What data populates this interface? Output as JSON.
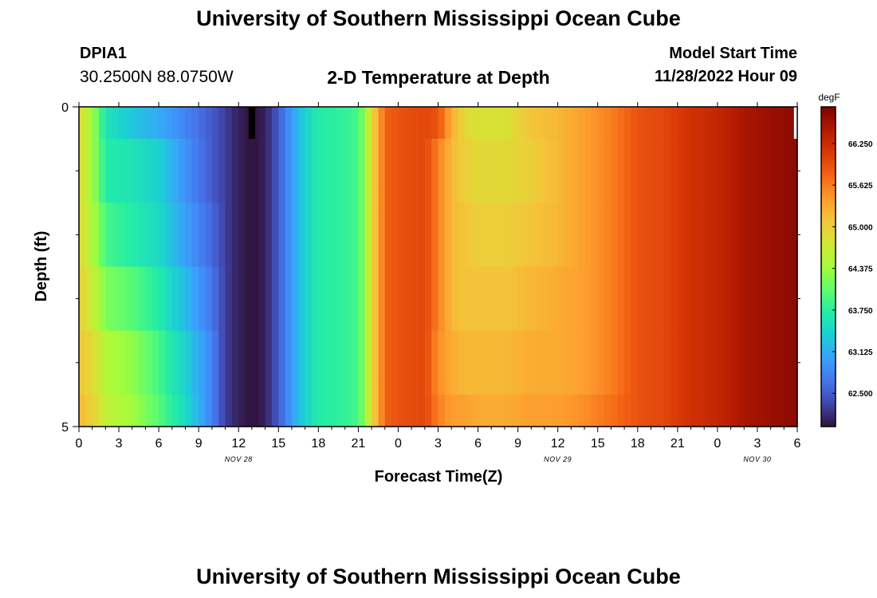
{
  "page": {
    "title": "University of Southern Mississippi Ocean Cube",
    "footer_title": "University of Southern Mississippi Ocean Cube",
    "station_id": "DPIA1",
    "station_coords": "30.2500N  88.0750W",
    "plot_title": "2-D Temperature at Depth",
    "model_start_label": "Model Start Time",
    "model_start_value": "11/28/2022 Hour 09"
  },
  "colors": {
    "background": "#ffffff",
    "axis": "#000000",
    "missing": "#000000"
  },
  "chart_data": {
    "type": "heatmap",
    "title": "2-D Temperature at Depth",
    "xlabel": "Forecast Time(Z)",
    "ylabel": "Depth (ft)",
    "x_range_hours": [
      0,
      54
    ],
    "y_range": [
      0,
      5
    ],
    "x_tick_labels": [
      "0",
      "3",
      "6",
      "9",
      "12",
      "15",
      "18",
      "21",
      "0",
      "3",
      "6",
      "9",
      "12",
      "15",
      "18",
      "21",
      "0",
      "3",
      "6"
    ],
    "x_minor_step_hours": 1,
    "y_tick_labels": [
      "0",
      "5"
    ],
    "y_minor_ticks": [
      1,
      2,
      3,
      4
    ],
    "date_labels": [
      {
        "text": "NOV 28",
        "hour": 12
      },
      {
        "text": "NOV 29",
        "hour": 36
      },
      {
        "text": "NOV 30",
        "hour": 51
      }
    ],
    "colorbar": {
      "unit": "degF",
      "range": [
        62.0,
        66.8
      ],
      "tick_values": [
        62.5,
        63.125,
        63.75,
        64.375,
        65.0,
        65.625,
        66.25
      ],
      "tick_labels": [
        "62.500",
        "63.125",
        "63.750",
        "64.375",
        "65.000",
        "65.625",
        "66.250"
      ],
      "stops": [
        "#30123b",
        "#4145ab",
        "#4675ed",
        "#39a2fc",
        "#1bcfd4",
        "#24eca6",
        "#61fc6c",
        "#a4fc3b",
        "#d1e834",
        "#f3c63a",
        "#fe9b2d",
        "#f36315",
        "#d93806",
        "#b11901",
        "#7a0402"
      ]
    },
    "depth_bands": [
      [
        0,
        0.5
      ],
      [
        0.5,
        1.5
      ],
      [
        1.5,
        2.5
      ],
      [
        2.5,
        3.5
      ],
      [
        3.5,
        4.5
      ],
      [
        4.5,
        5
      ]
    ],
    "time_step_hours": 0.5,
    "key_times_hours": [
      0,
      1,
      2,
      4,
      6,
      8,
      10,
      11,
      12,
      13,
      14,
      15,
      16,
      17,
      18,
      20,
      21,
      21.5,
      22,
      22.5,
      23,
      24,
      26,
      27,
      28,
      29,
      30,
      32,
      34,
      36,
      38,
      40,
      42,
      44,
      46,
      48,
      50,
      52,
      54
    ],
    "temperature_profiles": [
      [
        64.9,
        64.4,
        63.6,
        63.3,
        63.1,
        62.8,
        62.5,
        62.3,
        62.1,
        62.0,
        62.1,
        62.5,
        63.0,
        63.4,
        63.7,
        63.8,
        63.9,
        64.3,
        64.9,
        65.3,
        65.8,
        65.9,
        66.0,
        65.9,
        65.3,
        64.9,
        64.8,
        64.8,
        65.1,
        65.2,
        65.4,
        65.6,
        65.9,
        66.0,
        66.2,
        66.3,
        66.5,
        66.6,
        66.7
      ],
      [
        64.9,
        64.4,
        63.7,
        63.6,
        63.4,
        62.9,
        62.5,
        62.3,
        62.1,
        62.0,
        62.1,
        62.5,
        63.0,
        63.4,
        63.7,
        63.8,
        63.9,
        64.3,
        64.9,
        65.3,
        65.8,
        65.9,
        66.0,
        65.6,
        65.2,
        65.0,
        64.9,
        64.9,
        65.0,
        65.2,
        65.4,
        65.6,
        65.9,
        66.0,
        66.2,
        66.3,
        66.5,
        66.6,
        66.7
      ],
      [
        64.9,
        64.5,
        63.9,
        63.7,
        63.5,
        63.0,
        62.6,
        62.3,
        62.1,
        62.0,
        62.1,
        62.5,
        63.0,
        63.4,
        63.7,
        63.8,
        63.9,
        64.3,
        64.9,
        65.3,
        65.8,
        65.9,
        66.0,
        65.6,
        65.2,
        65.1,
        65.0,
        65.0,
        65.1,
        65.2,
        65.4,
        65.6,
        65.9,
        66.0,
        66.2,
        66.3,
        66.5,
        66.6,
        66.7
      ],
      [
        65.0,
        64.7,
        64.2,
        64.0,
        63.7,
        63.2,
        62.7,
        62.3,
        62.1,
        62.0,
        62.1,
        62.5,
        63.0,
        63.4,
        63.7,
        63.8,
        63.9,
        64.3,
        64.9,
        65.3,
        65.8,
        65.9,
        66.0,
        65.6,
        65.2,
        65.1,
        65.1,
        65.1,
        65.2,
        65.3,
        65.4,
        65.6,
        65.9,
        66.0,
        66.2,
        66.3,
        66.5,
        66.6,
        66.7
      ],
      [
        65.1,
        64.9,
        64.5,
        64.3,
        63.9,
        63.4,
        62.8,
        62.3,
        62.1,
        62.0,
        62.1,
        62.5,
        63.0,
        63.4,
        63.7,
        63.8,
        63.9,
        64.3,
        64.9,
        65.3,
        65.8,
        65.9,
        66.0,
        65.5,
        65.3,
        65.2,
        65.2,
        65.2,
        65.3,
        65.3,
        65.4,
        65.6,
        65.9,
        66.0,
        66.2,
        66.3,
        66.5,
        66.6,
        66.7
      ],
      [
        65.2,
        65.0,
        64.6,
        64.4,
        64.0,
        63.5,
        62.8,
        62.3,
        62.1,
        62.0,
        62.1,
        62.5,
        63.0,
        63.4,
        63.7,
        63.8,
        63.9,
        64.3,
        64.9,
        65.3,
        65.8,
        65.9,
        66.0,
        65.6,
        65.4,
        65.4,
        65.3,
        65.3,
        65.4,
        65.4,
        65.5,
        65.7,
        65.9,
        66.0,
        66.2,
        66.3,
        66.5,
        66.6,
        66.7
      ]
    ],
    "missing_cells": [
      {
        "hour_start": 12.75,
        "hour_end": 13.25,
        "depth_start": 0,
        "depth_end": 0.5,
        "color": "#000000"
      },
      {
        "hour_start": 53.75,
        "hour_end": 54,
        "depth_start": 0,
        "depth_end": 0.5,
        "color": "#ffffff"
      }
    ]
  }
}
